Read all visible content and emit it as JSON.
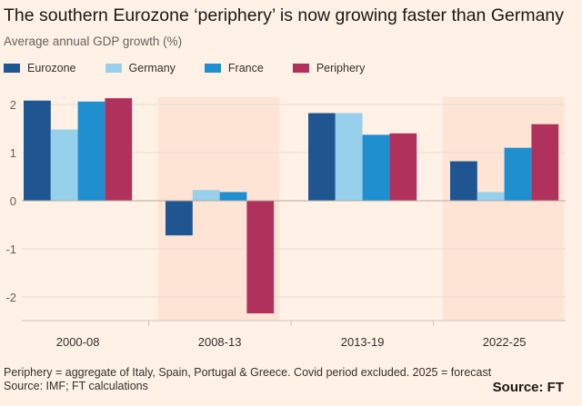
{
  "title": "The southern Eurozone ‘periphery’ is now growing faster than Germany",
  "subtitle": "Average annual GDP growth (%)",
  "footer": {
    "note": "Periphery = aggregate of Italy, Spain, Portugal & Greece. Covid period excluded. 2025 = forecast",
    "source": "Source: IMF; FT calculations",
    "brand": "Source: FT"
  },
  "chart_data": {
    "type": "bar",
    "categories": [
      "2000-08",
      "2008-13",
      "2013-19",
      "2022-25"
    ],
    "highlighted_categories": [
      "2008-13",
      "2022-25"
    ],
    "series": [
      {
        "name": "Eurozone",
        "color": "#1f5591",
        "values": [
          2.08,
          -0.72,
          1.82,
          0.82
        ]
      },
      {
        "name": "Germany",
        "color": "#96d0ea",
        "values": [
          1.48,
          0.22,
          1.82,
          0.18
        ]
      },
      {
        "name": "France",
        "color": "#1f8fcf",
        "values": [
          2.06,
          0.18,
          1.37,
          1.1
        ]
      },
      {
        "name": "Periphery",
        "color": "#b1315d",
        "values": [
          2.13,
          -2.34,
          1.4,
          1.59
        ]
      }
    ],
    "yticks": [
      "2",
      "1",
      "0",
      "-1",
      "-2"
    ],
    "ylim": [
      -2.5,
      2.2
    ],
    "grid": true,
    "legend": "top-left",
    "xlabel": "",
    "ylabel": ""
  }
}
